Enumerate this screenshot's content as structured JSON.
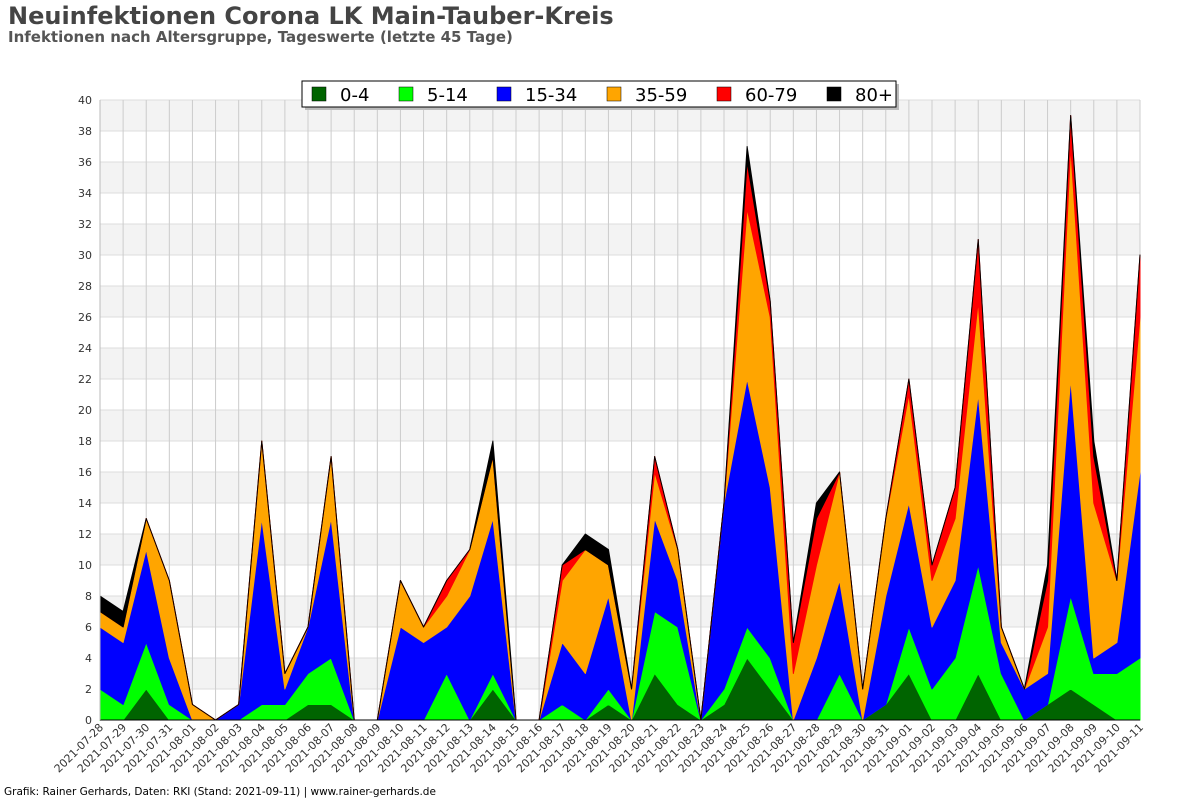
{
  "header": {
    "title": "Neuinfektionen Corona LK Main-Tauber-Kreis",
    "subtitle": "Infektionen nach Altersgruppe, Tageswerte (letzte 45 Tage)"
  },
  "footer": {
    "text": "Grafik: Rainer Gerhards, Daten: RKI (Stand: 2021-09-11) | www.rainer-gerhards.de"
  },
  "chart_data": {
    "type": "area",
    "stacked": true,
    "title": "Neuinfektionen Corona LK Main-Tauber-Kreis",
    "subtitle": "Infektionen nach Altersgruppe, Tageswerte (letzte 45 Tage)",
    "xlabel": "",
    "ylabel": "",
    "ylim": [
      0,
      40
    ],
    "yticks": [
      0,
      2,
      4,
      6,
      8,
      10,
      12,
      14,
      16,
      18,
      20,
      22,
      24,
      26,
      28,
      30,
      32,
      34,
      36,
      38,
      40
    ],
    "grid": true,
    "legend_position": "top-center",
    "x": [
      "2021-07-28",
      "2021-07-29",
      "2021-07-30",
      "2021-07-31",
      "2021-08-01",
      "2021-08-02",
      "2021-08-03",
      "2021-08-04",
      "2021-08-05",
      "2021-08-06",
      "2021-08-07",
      "2021-08-08",
      "2021-08-09",
      "2021-08-10",
      "2021-08-11",
      "2021-08-12",
      "2021-08-13",
      "2021-08-14",
      "2021-08-15",
      "2021-08-16",
      "2021-08-17",
      "2021-08-18",
      "2021-08-19",
      "2021-08-20",
      "2021-08-21",
      "2021-08-22",
      "2021-08-23",
      "2021-08-24",
      "2021-08-25",
      "2021-08-26",
      "2021-08-27",
      "2021-08-28",
      "2021-08-29",
      "2021-08-30",
      "2021-08-31",
      "2021-09-01",
      "2021-09-02",
      "2021-09-03",
      "2021-09-04",
      "2021-09-05",
      "2021-09-06",
      "2021-09-07",
      "2021-09-08",
      "2021-09-09",
      "2021-09-10",
      "2021-09-11"
    ],
    "series": [
      {
        "name": "0-4",
        "color": "#006400",
        "values": [
          0,
          0,
          2,
          0,
          0,
          0,
          0,
          0,
          0,
          1,
          1,
          0,
          0,
          0,
          0,
          0,
          0,
          2,
          0,
          0,
          0,
          0,
          1,
          0,
          3,
          1,
          0,
          1,
          4,
          2,
          0,
          0,
          0,
          0,
          1,
          3,
          0,
          0,
          3,
          0,
          0,
          1,
          2,
          1,
          0,
          0
        ]
      },
      {
        "name": "5-14",
        "color": "#00ff00",
        "values": [
          2,
          1,
          3,
          1,
          0,
          0,
          0,
          1,
          1,
          2,
          3,
          0,
          0,
          0,
          0,
          3,
          0,
          1,
          0,
          0,
          1,
          0,
          1,
          0,
          4,
          5,
          0,
          1,
          2,
          2,
          0,
          0,
          3,
          0,
          0,
          3,
          2,
          4,
          7,
          3,
          0,
          0,
          6,
          2,
          3,
          4
        ]
      },
      {
        "name": "15-34",
        "color": "#0000ff",
        "values": [
          4,
          4,
          6,
          3,
          0,
          0,
          1,
          12,
          1,
          3,
          9,
          0,
          0,
          6,
          5,
          3,
          8,
          10,
          0,
          0,
          4,
          3,
          6,
          0,
          6,
          3,
          0,
          12,
          16,
          11,
          0,
          4,
          6,
          0,
          7,
          8,
          4,
          5,
          11,
          2,
          2,
          2,
          14,
          1,
          2,
          12
        ]
      },
      {
        "name": "35-59",
        "color": "#ffa500",
        "values": [
          1,
          1,
          2,
          5,
          1,
          0,
          0,
          5,
          1,
          0,
          4,
          0,
          0,
          3,
          1,
          2,
          3,
          4,
          0,
          0,
          4,
          8,
          2,
          2,
          3,
          2,
          0,
          0,
          11,
          11,
          3,
          6,
          7,
          2,
          5,
          7,
          3,
          4,
          6,
          1,
          0,
          3,
          15,
          10,
          4,
          10
        ]
      },
      {
        "name": "60-79",
        "color": "#ff0000",
        "values": [
          0,
          0,
          0,
          0,
          0,
          0,
          0,
          0,
          0,
          0,
          0,
          0,
          0,
          0,
          0,
          1,
          0,
          0,
          0,
          0,
          1,
          0,
          0,
          0,
          1,
          0,
          0,
          0,
          3,
          1,
          2,
          3,
          0,
          0,
          0,
          1,
          1,
          2,
          4,
          0,
          0,
          3,
          2,
          3,
          0,
          4
        ]
      },
      {
        "name": "80+",
        "color": "#000000",
        "values": [
          1,
          1,
          0,
          0,
          0,
          0,
          0,
          0,
          0,
          0,
          0,
          0,
          0,
          0,
          0,
          0,
          0,
          1,
          0,
          0,
          0,
          1,
          1,
          0,
          0,
          0,
          0,
          0,
          1,
          0,
          0,
          1,
          0,
          0,
          0,
          0,
          0,
          0,
          0,
          0,
          0,
          1,
          0,
          1,
          0,
          0
        ]
      }
    ]
  }
}
